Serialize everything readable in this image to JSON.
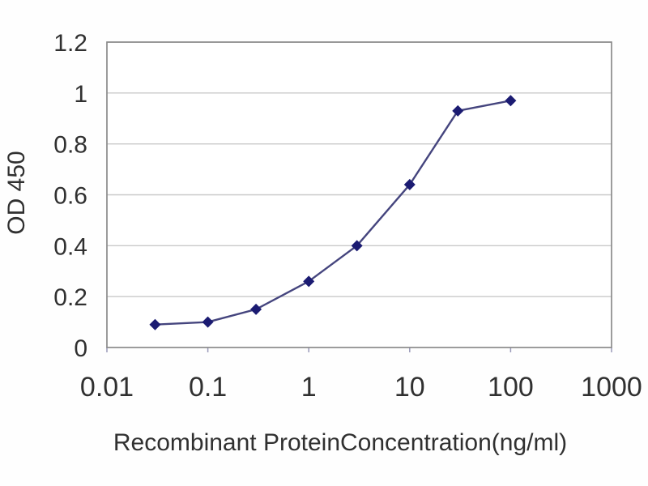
{
  "chart_data": {
    "type": "line",
    "x_scale": "log",
    "x": [
      0.03,
      0.1,
      0.3,
      1,
      3,
      10,
      30,
      100
    ],
    "y": [
      0.09,
      0.1,
      0.15,
      0.26,
      0.4,
      0.64,
      0.93,
      0.97
    ],
    "title": "",
    "xlabel": "Recombinant ProteinConcentration(ng/ml)",
    "ylabel": "OD 450",
    "xlim": [
      0.01,
      1000
    ],
    "ylim": [
      0,
      1.2
    ],
    "x_ticks": [
      "0.01",
      "0.1",
      "1",
      "10",
      "100",
      "1000"
    ],
    "y_ticks": [
      "0",
      "0.2",
      "0.4",
      "0.6",
      "0.8",
      "1",
      "1.2"
    ],
    "grid": "horizontal-only",
    "legend": "none",
    "marker_shape": "diamond",
    "colors": {
      "marker": "#1b1b72",
      "line": "#45457e",
      "gridline": "#c9c9c9",
      "frame": "#8a8a8a",
      "tick": "#9a9ab8",
      "text": "#303030",
      "plot_background": "#ffffff"
    }
  }
}
